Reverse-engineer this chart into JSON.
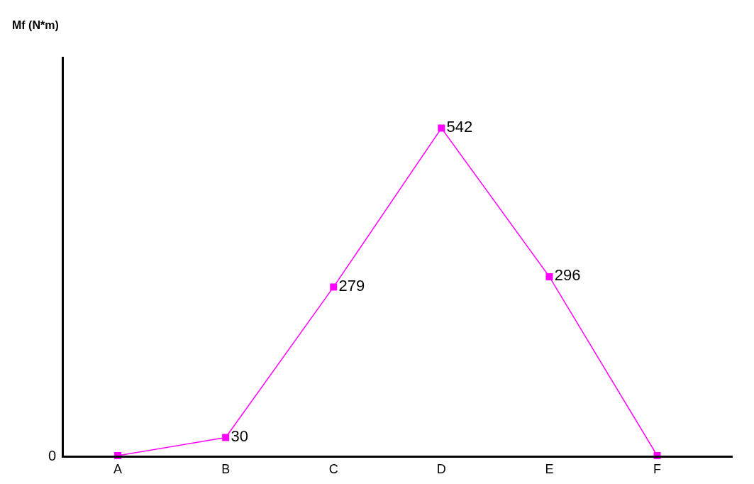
{
  "chart_data": {
    "type": "line",
    "ylabel": "Mf (N*m)",
    "categories": [
      "A",
      "B",
      "C",
      "D",
      "E",
      "F"
    ],
    "series": [
      {
        "color": "#ff00ff",
        "values": [
          0,
          30,
          279,
          542,
          296,
          0
        ],
        "value_labels": [
          null,
          "30",
          "279",
          "542",
          "296",
          null
        ]
      }
    ],
    "ylim": [
      0,
      660
    ],
    "annotations": [
      "0"
    ],
    "marker": "square",
    "line_style": "solid"
  }
}
